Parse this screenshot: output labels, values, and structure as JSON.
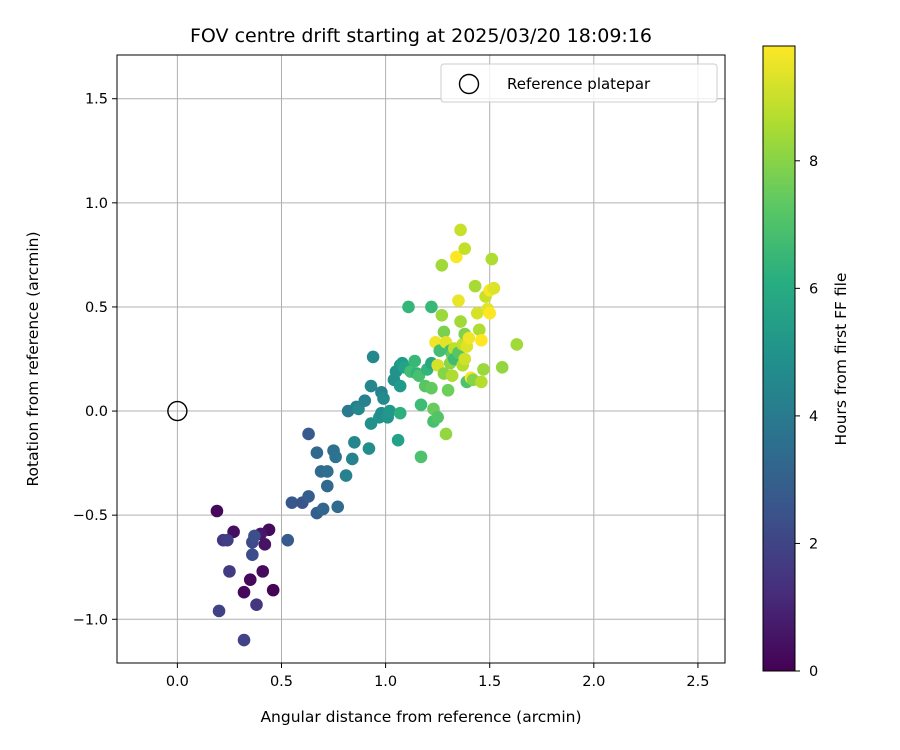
{
  "chart_data": {
    "type": "scatter",
    "title": "FOV centre drift starting at 2025/03/20 18:09:16",
    "xlabel": "Angular distance from reference (arcmin)",
    "ylabel": "Rotation from reference (arcmin)",
    "xlim": [
      -0.29,
      2.63
    ],
    "ylim": [
      -1.21,
      1.71
    ],
    "xticks": [
      0.0,
      0.5,
      1.0,
      1.5,
      2.0,
      2.5
    ],
    "xtick_labels": [
      "0.0",
      "0.5",
      "1.0",
      "1.5",
      "2.0",
      "2.5"
    ],
    "yticks": [
      -1.0,
      -0.5,
      0.0,
      0.5,
      1.0,
      1.5
    ],
    "ytick_labels": [
      "−1.0",
      "−0.5",
      "0.0",
      "0.5",
      "1.0",
      "1.5"
    ],
    "grid": true,
    "legend": {
      "placement": "top-right",
      "entries": [
        {
          "label": "Reference platepar",
          "marker": "open-circle"
        }
      ]
    },
    "reference_point": {
      "x": 0.0,
      "y": 0.0
    },
    "colorbar": {
      "label": "Hours from first FF file",
      "colormap": "viridis",
      "range": [
        0,
        9.8
      ],
      "ticks": [
        0,
        2,
        4,
        6,
        8
      ],
      "tick_labels": [
        "0",
        "2",
        "4",
        "6",
        "8"
      ]
    },
    "points": [
      {
        "x": 0.19,
        "y": -0.48,
        "c": 0.2
      },
      {
        "x": 0.27,
        "y": -0.58,
        "c": 0.4
      },
      {
        "x": 0.44,
        "y": -0.57,
        "c": 0.3
      },
      {
        "x": 0.4,
        "y": -0.59,
        "c": 0.6
      },
      {
        "x": 0.42,
        "y": -0.64,
        "c": 0.5
      },
      {
        "x": 0.41,
        "y": -0.77,
        "c": 0.3
      },
      {
        "x": 0.35,
        "y": -0.81,
        "c": 0.2
      },
      {
        "x": 0.46,
        "y": -0.86,
        "c": 0.1
      },
      {
        "x": 0.32,
        "y": -0.87,
        "c": 0.2
      },
      {
        "x": 0.22,
        "y": -0.62,
        "c": 1.6
      },
      {
        "x": 0.24,
        "y": -0.62,
        "c": 1.8
      },
      {
        "x": 0.25,
        "y": -0.77,
        "c": 1.7
      },
      {
        "x": 0.2,
        "y": -0.96,
        "c": 1.9
      },
      {
        "x": 0.38,
        "y": -0.93,
        "c": 1.6
      },
      {
        "x": 0.32,
        "y": -1.1,
        "c": 2.0
      },
      {
        "x": 0.36,
        "y": -0.63,
        "c": 2.2
      },
      {
        "x": 0.37,
        "y": -0.6,
        "c": 2.4
      },
      {
        "x": 0.36,
        "y": -0.69,
        "c": 2.3
      },
      {
        "x": 0.53,
        "y": -0.62,
        "c": 2.8
      },
      {
        "x": 0.55,
        "y": -0.44,
        "c": 2.7
      },
      {
        "x": 0.6,
        "y": -0.44,
        "c": 2.6
      },
      {
        "x": 0.63,
        "y": -0.41,
        "c": 2.9
      },
      {
        "x": 0.63,
        "y": -0.11,
        "c": 2.8
      },
      {
        "x": 0.67,
        "y": -0.49,
        "c": 3.0
      },
      {
        "x": 0.7,
        "y": -0.47,
        "c": 3.2
      },
      {
        "x": 0.67,
        "y": -0.2,
        "c": 3.3
      },
      {
        "x": 0.69,
        "y": -0.29,
        "c": 3.4
      },
      {
        "x": 0.72,
        "y": -0.29,
        "c": 3.5
      },
      {
        "x": 0.72,
        "y": -0.36,
        "c": 3.3
      },
      {
        "x": 0.75,
        "y": -0.19,
        "c": 3.6
      },
      {
        "x": 0.76,
        "y": -0.22,
        "c": 3.7
      },
      {
        "x": 0.77,
        "y": -0.46,
        "c": 3.4
      },
      {
        "x": 0.81,
        "y": -0.31,
        "c": 4.3
      },
      {
        "x": 0.82,
        "y": 0.0,
        "c": 4.0
      },
      {
        "x": 0.84,
        "y": -0.23,
        "c": 4.4
      },
      {
        "x": 0.85,
        "y": -0.15,
        "c": 4.5
      },
      {
        "x": 0.86,
        "y": 0.02,
        "c": 4.2
      },
      {
        "x": 0.87,
        "y": 0.01,
        "c": 4.6
      },
      {
        "x": 0.9,
        "y": 0.05,
        "c": 4.3
      },
      {
        "x": 0.92,
        "y": -0.18,
        "c": 4.8
      },
      {
        "x": 0.93,
        "y": -0.06,
        "c": 4.9
      },
      {
        "x": 0.93,
        "y": 0.12,
        "c": 4.5
      },
      {
        "x": 0.94,
        "y": 0.26,
        "c": 4.6
      },
      {
        "x": 0.97,
        "y": -0.03,
        "c": 5.0
      },
      {
        "x": 0.98,
        "y": -0.01,
        "c": 4.8
      },
      {
        "x": 0.98,
        "y": 0.09,
        "c": 4.4
      },
      {
        "x": 0.99,
        "y": 0.06,
        "c": 4.7
      },
      {
        "x": 1.01,
        "y": -0.03,
        "c": 5.1
      },
      {
        "x": 1.02,
        "y": 0.0,
        "c": 5.2
      },
      {
        "x": 1.04,
        "y": 0.15,
        "c": 4.9
      },
      {
        "x": 1.05,
        "y": 0.19,
        "c": 5.0
      },
      {
        "x": 1.06,
        "y": -0.14,
        "c": 5.6
      },
      {
        "x": 1.07,
        "y": -0.01,
        "c": 6.2
      },
      {
        "x": 1.07,
        "y": 0.12,
        "c": 5.3
      },
      {
        "x": 1.07,
        "y": 0.22,
        "c": 5.1
      },
      {
        "x": 1.08,
        "y": 0.23,
        "c": 5.4
      },
      {
        "x": 1.09,
        "y": 0.21,
        "c": 5.6
      },
      {
        "x": 1.11,
        "y": 0.5,
        "c": 6.5
      },
      {
        "x": 1.12,
        "y": 0.19,
        "c": 6.8
      },
      {
        "x": 1.14,
        "y": 0.24,
        "c": 6.6
      },
      {
        "x": 1.15,
        "y": 0.18,
        "c": 6.3
      },
      {
        "x": 1.16,
        "y": 0.17,
        "c": 6.9
      },
      {
        "x": 1.17,
        "y": 0.03,
        "c": 6.7
      },
      {
        "x": 1.17,
        "y": -0.22,
        "c": 7.0
      },
      {
        "x": 1.19,
        "y": 0.12,
        "c": 7.2
      },
      {
        "x": 1.2,
        "y": 0.2,
        "c": 6.4
      },
      {
        "x": 1.22,
        "y": 0.23,
        "c": 5.9
      },
      {
        "x": 1.22,
        "y": 0.5,
        "c": 6.6
      },
      {
        "x": 1.22,
        "y": 0.11,
        "c": 7.4
      },
      {
        "x": 1.23,
        "y": 0.01,
        "c": 7.5
      },
      {
        "x": 1.23,
        "y": -0.05,
        "c": 6.9
      },
      {
        "x": 1.24,
        "y": 0.33,
        "c": 9.6
      },
      {
        "x": 1.25,
        "y": -0.03,
        "c": 7.1
      },
      {
        "x": 1.25,
        "y": 0.22,
        "c": 9.2
      },
      {
        "x": 1.26,
        "y": 0.29,
        "c": 6.8
      },
      {
        "x": 1.27,
        "y": 0.7,
        "c": 8.4
      },
      {
        "x": 1.27,
        "y": 0.46,
        "c": 8.3
      },
      {
        "x": 1.28,
        "y": 0.38,
        "c": 7.8
      },
      {
        "x": 1.28,
        "y": 0.18,
        "c": 8.0
      },
      {
        "x": 1.29,
        "y": 0.33,
        "c": 9.4
      },
      {
        "x": 1.29,
        "y": -0.11,
        "c": 8.2
      },
      {
        "x": 1.3,
        "y": 0.1,
        "c": 7.6
      },
      {
        "x": 1.31,
        "y": 0.29,
        "c": 6.9
      },
      {
        "x": 1.31,
        "y": 0.23,
        "c": 8.1
      },
      {
        "x": 1.32,
        "y": 0.17,
        "c": 8.6
      },
      {
        "x": 1.32,
        "y": 0.27,
        "c": 7.4
      },
      {
        "x": 1.33,
        "y": 0.3,
        "c": 8.8
      },
      {
        "x": 1.33,
        "y": 0.25,
        "c": 6.7
      },
      {
        "x": 1.34,
        "y": 0.74,
        "c": 9.8
      },
      {
        "x": 1.35,
        "y": 0.53,
        "c": 9.5
      },
      {
        "x": 1.35,
        "y": 0.28,
        "c": 7.2
      },
      {
        "x": 1.36,
        "y": 0.87,
        "c": 9.0
      },
      {
        "x": 1.36,
        "y": 0.43,
        "c": 8.4
      },
      {
        "x": 1.37,
        "y": 0.22,
        "c": 8.7
      },
      {
        "x": 1.37,
        "y": 0.32,
        "c": 8.9
      },
      {
        "x": 1.38,
        "y": 0.78,
        "c": 8.9
      },
      {
        "x": 1.38,
        "y": 0.37,
        "c": 7.9
      },
      {
        "x": 1.38,
        "y": 0.25,
        "c": 9.1
      },
      {
        "x": 1.39,
        "y": 0.14,
        "c": 7.0
      },
      {
        "x": 1.39,
        "y": 0.31,
        "c": 9.3
      },
      {
        "x": 1.4,
        "y": 0.35,
        "c": 9.6
      },
      {
        "x": 1.41,
        "y": 0.16,
        "c": 9.7
      },
      {
        "x": 1.42,
        "y": 0.15,
        "c": 8.0
      },
      {
        "x": 1.43,
        "y": 0.6,
        "c": 8.5
      },
      {
        "x": 1.44,
        "y": 0.47,
        "c": 9.2
      },
      {
        "x": 1.45,
        "y": 0.39,
        "c": 8.6
      },
      {
        "x": 1.46,
        "y": 0.34,
        "c": 9.8
      },
      {
        "x": 1.46,
        "y": 0.14,
        "c": 8.7
      },
      {
        "x": 1.47,
        "y": 0.2,
        "c": 8.3
      },
      {
        "x": 1.48,
        "y": 0.55,
        "c": 9.0
      },
      {
        "x": 1.49,
        "y": 0.49,
        "c": 9.4
      },
      {
        "x": 1.5,
        "y": 0.58,
        "c": 9.7
      },
      {
        "x": 1.5,
        "y": 0.47,
        "c": 9.9
      },
      {
        "x": 1.51,
        "y": 0.73,
        "c": 8.6
      },
      {
        "x": 1.52,
        "y": 0.59,
        "c": 9.3
      },
      {
        "x": 1.56,
        "y": 0.21,
        "c": 8.2
      },
      {
        "x": 1.63,
        "y": 0.32,
        "c": 8.4
      }
    ]
  }
}
